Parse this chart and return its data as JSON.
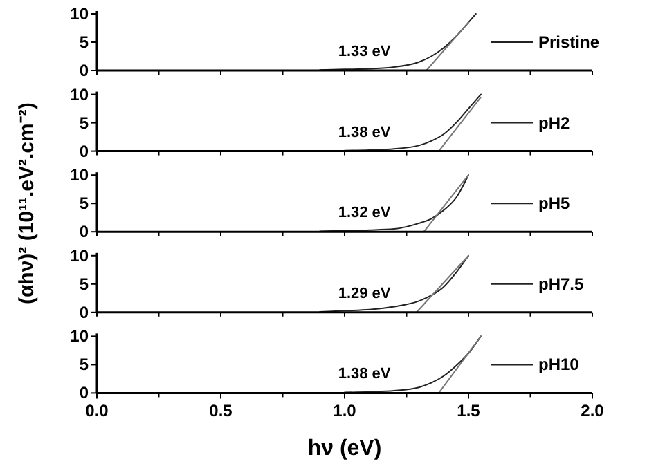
{
  "chart_data": [
    {
      "type": "line",
      "ylabel": "(αhν)² (10¹¹.eV².cm⁻²)",
      "annotations": [
        "1.33 eV"
      ],
      "xlim": [
        0,
        2
      ],
      "ylim": [
        0,
        10
      ],
      "xticks": [
        {
          "value": 0,
          "label": null
        },
        {
          "value": 0.25,
          "label": null
        },
        {
          "value": 0.5,
          "label": null
        },
        {
          "value": 0.75,
          "label": null
        },
        {
          "value": 1,
          "label": null
        },
        {
          "value": 1.25,
          "label": null
        },
        {
          "value": 1.5,
          "label": null
        },
        {
          "value": 1.75,
          "label": null
        },
        {
          "value": 2,
          "label": null
        }
      ],
      "yticks": [
        0,
        5,
        10
      ],
      "tick_labels": "y",
      "legend": "right",
      "grid": false,
      "series": [
        {
          "name": "Pristine",
          "color": "#222222",
          "x": [
            0.9,
            1.0,
            1.1,
            1.2,
            1.3,
            1.35,
            1.4,
            1.45,
            1.5,
            1.53
          ],
          "values": [
            0.1,
            0.2,
            0.3,
            0.6,
            1.5,
            2.5,
            4,
            6,
            8.5,
            10
          ]
        },
        {
          "color": "#777777",
          "x": [
            1.33,
            1.5
          ],
          "values": [
            0,
            8.5
          ]
        }
      ]
    },
    {
      "type": "line",
      "annotations": [
        "1.38 eV"
      ],
      "xlim": [
        0,
        2
      ],
      "ylim": [
        0,
        10
      ],
      "xticks": [
        {
          "value": 0,
          "label": null
        },
        {
          "value": 0.25,
          "label": null
        },
        {
          "value": 0.5,
          "label": null
        },
        {
          "value": 0.75,
          "label": null
        },
        {
          "value": 1,
          "label": null
        },
        {
          "value": 1.25,
          "label": null
        },
        {
          "value": 1.5,
          "label": null
        },
        {
          "value": 1.75,
          "label": null
        },
        {
          "value": 2,
          "label": null
        }
      ],
      "yticks": [
        0,
        5,
        10
      ],
      "tick_labels": "y",
      "legend": "right",
      "grid": false,
      "series": [
        {
          "name": "pH2",
          "color": "#222222",
          "x": [
            1.0,
            1.1,
            1.2,
            1.3,
            1.35,
            1.4,
            1.45,
            1.5,
            1.55
          ],
          "values": [
            0.1,
            0.2,
            0.4,
            1,
            1.8,
            3,
            5,
            7.5,
            10
          ]
        },
        {
          "color": "#777777",
          "x": [
            1.38,
            1.55
          ],
          "values": [
            0,
            9.5
          ]
        }
      ]
    },
    {
      "type": "line",
      "annotations": [
        "1.32 eV"
      ],
      "xlim": [
        0,
        2
      ],
      "ylim": [
        0,
        10
      ],
      "xticks": [
        {
          "value": 0,
          "label": null
        },
        {
          "value": 0.25,
          "label": null
        },
        {
          "value": 0.5,
          "label": null
        },
        {
          "value": 0.75,
          "label": null
        },
        {
          "value": 1,
          "label": null
        },
        {
          "value": 1.25,
          "label": null
        },
        {
          "value": 1.5,
          "label": null
        },
        {
          "value": 1.75,
          "label": null
        },
        {
          "value": 2,
          "label": null
        }
      ],
      "yticks": [
        0,
        5,
        10
      ],
      "tick_labels": "y",
      "legend": "right",
      "grid": false,
      "series": [
        {
          "name": "pH5",
          "color": "#222222",
          "x": [
            0.9,
            1.0,
            1.1,
            1.2,
            1.3,
            1.35,
            1.4,
            1.45,
            1.5
          ],
          "values": [
            0.1,
            0.2,
            0.3,
            0.5,
            1.5,
            2.3,
            3.8,
            6,
            10
          ]
        },
        {
          "color": "#777777",
          "x": [
            1.32,
            1.5
          ],
          "values": [
            0,
            10
          ]
        }
      ]
    },
    {
      "type": "line",
      "annotations": [
        "1.29 eV"
      ],
      "xlim": [
        0,
        2
      ],
      "ylim": [
        0,
        10
      ],
      "xticks": [
        {
          "value": 0,
          "label": null
        },
        {
          "value": 0.25,
          "label": null
        },
        {
          "value": 0.5,
          "label": null
        },
        {
          "value": 0.75,
          "label": null
        },
        {
          "value": 1,
          "label": null
        },
        {
          "value": 1.25,
          "label": null
        },
        {
          "value": 1.5,
          "label": null
        },
        {
          "value": 1.75,
          "label": null
        },
        {
          "value": 2,
          "label": null
        }
      ],
      "yticks": [
        0,
        5,
        10
      ],
      "tick_labels": "y",
      "legend": "right",
      "grid": false,
      "series": [
        {
          "name": "pH7.5",
          "color": "#222222",
          "x": [
            0.9,
            1.0,
            1.1,
            1.2,
            1.3,
            1.35,
            1.4,
            1.45,
            1.5
          ],
          "values": [
            0.1,
            0.3,
            0.5,
            1,
            2,
            3,
            4.5,
            7,
            10
          ]
        },
        {
          "color": "#777777",
          "x": [
            1.29,
            1.5
          ],
          "values": [
            0,
            10
          ]
        }
      ]
    },
    {
      "type": "line",
      "xlabel": "hν (eV)",
      "annotations": [
        "1.38 eV"
      ],
      "xlim": [
        0,
        2
      ],
      "ylim": [
        0,
        10
      ],
      "xticks": [
        {
          "value": 0,
          "label": "0.0"
        },
        {
          "value": 0.25,
          "label": null
        },
        {
          "value": 0.5,
          "label": "0.5"
        },
        {
          "value": 0.75,
          "label": null
        },
        {
          "value": 1,
          "label": "1.0"
        },
        {
          "value": 1.25,
          "label": null
        },
        {
          "value": 1.5,
          "label": "1.5"
        },
        {
          "value": 1.75,
          "label": null
        },
        {
          "value": 2,
          "label": "2.0"
        }
      ],
      "yticks": [
        0,
        5,
        10
      ],
      "legend": "right",
      "grid": false,
      "series": [
        {
          "name": "pH10",
          "color": "#222222",
          "x": [
            1.0,
            1.1,
            1.2,
            1.3,
            1.35,
            1.4,
            1.45,
            1.5,
            1.55
          ],
          "values": [
            0.1,
            0.2,
            0.4,
            1,
            1.8,
            3,
            4.8,
            7,
            10
          ]
        },
        {
          "color": "#777777",
          "x": [
            1.38,
            1.55
          ],
          "values": [
            0,
            10
          ]
        }
      ]
    }
  ]
}
